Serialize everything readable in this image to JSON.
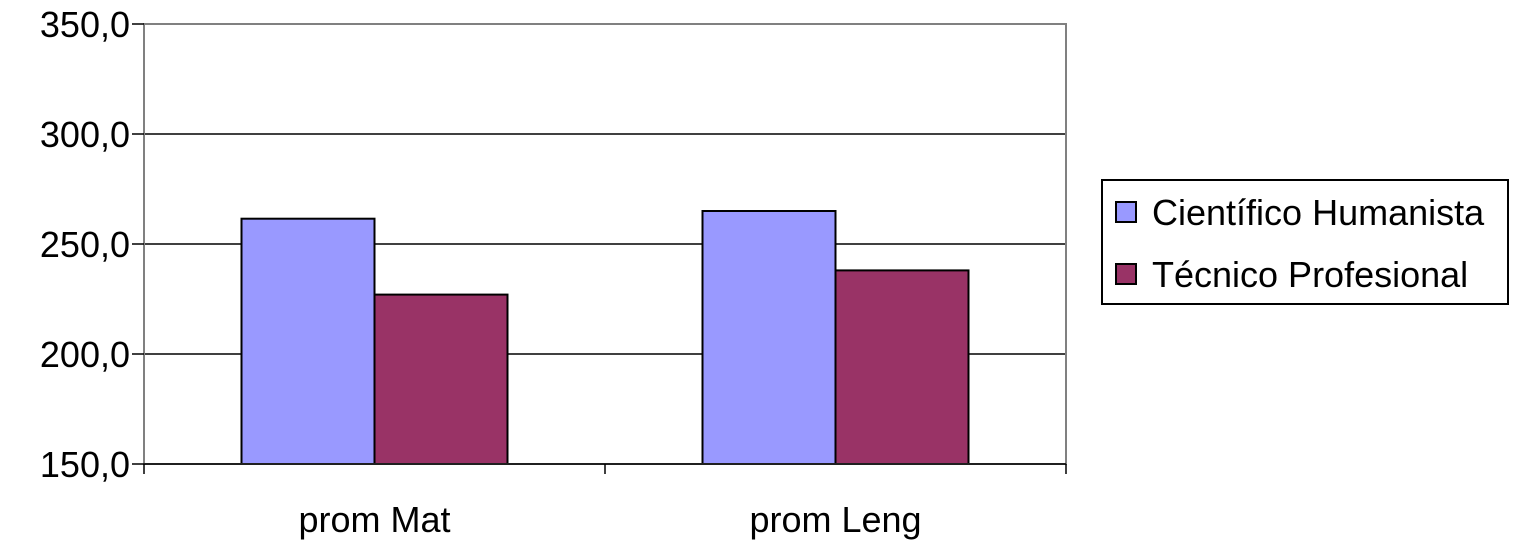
{
  "chart_data": {
    "type": "bar",
    "title": "",
    "xlabel": "",
    "ylabel": "",
    "categories": [
      "prom Mat",
      "prom Leng"
    ],
    "series": [
      {
        "name": "Científico Humanista",
        "values": [
          261.5,
          265.0
        ],
        "color": "#9999ff"
      },
      {
        "name": "Técnico Profesional",
        "values": [
          227.0,
          238.0
        ],
        "color": "#993366"
      }
    ],
    "ylim": [
      150,
      350
    ],
    "yticks": [
      150,
      200,
      250,
      300,
      350
    ],
    "ytick_labels": [
      "150,0",
      "200,0",
      "250,0",
      "300,0",
      "350,0"
    ],
    "grid": true,
    "legend_position": "right"
  }
}
